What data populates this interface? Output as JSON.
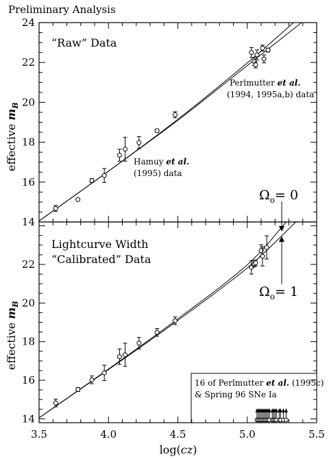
{
  "header": {
    "title": "Preliminary Analysis"
  },
  "chart_data": [
    {
      "type": "scatter",
      "panel_label": "“Raw” Data",
      "xlabel_prefix": "log(",
      "xlabel_var": "cz",
      "xlabel_suffix": ")",
      "ylabel_prefix": "effective",
      "ylabel_var": "m",
      "ylabel_sub": "B",
      "xlim": [
        3.5,
        5.5
      ],
      "ylim": [
        14,
        24
      ],
      "xticks": [
        "3.5",
        "4.0",
        "4.5",
        "5.0",
        "5.5"
      ],
      "yticks": [
        "14",
        "16",
        "18",
        "20",
        "22",
        "24"
      ],
      "annotations": [
        {
          "id": "hamuy",
          "lines": [
            "Hamuy et al.",
            "(1995) data"
          ]
        },
        {
          "id": "perlmutter",
          "lines": [
            "Perlmutter et al.",
            "(1994, 1995a,b) data"
          ]
        }
      ],
      "series": [
        {
          "points": [
            {
              "x": 3.62,
              "y": 14.68,
              "err": 0.15
            },
            {
              "x": 3.78,
              "y": 15.12,
              "err": 0
            },
            {
              "x": 3.88,
              "y": 16.08,
              "err": 0.1
            },
            {
              "x": 3.97,
              "y": 16.33,
              "err": 0.35
            },
            {
              "x": 4.08,
              "y": 17.35,
              "err": 0.3
            },
            {
              "x": 4.12,
              "y": 17.65,
              "err": 0.6
            },
            {
              "x": 4.22,
              "y": 17.98,
              "err": 0.3
            },
            {
              "x": 4.35,
              "y": 18.58,
              "err": 0.08
            },
            {
              "x": 4.48,
              "y": 19.38,
              "err": 0.15
            },
            {
              "x": 5.03,
              "y": 22.5,
              "err": 0.25
            },
            {
              "x": 5.05,
              "y": 22.05,
              "err": 0.2
            },
            {
              "x": 5.06,
              "y": 21.88,
              "err": 0.15
            },
            {
              "x": 5.07,
              "y": 22.38,
              "err": 0.25
            },
            {
              "x": 5.11,
              "y": 22.72,
              "err": 0.15
            },
            {
              "x": 5.12,
              "y": 22.18,
              "err": 0.2
            },
            {
              "x": 5.15,
              "y": 22.62,
              "err": 0.1
            }
          ]
        }
      ],
      "curves": [
        {
          "points": [
            [
              3.5,
              14.05
            ],
            [
              4.0,
              16.55
            ],
            [
              4.5,
              19.15
            ],
            [
              5.0,
              21.98
            ],
            [
              5.35,
              24.1
            ]
          ]
        },
        {
          "points": [
            [
              3.5,
              14.05
            ],
            [
              4.0,
              16.55
            ],
            [
              4.5,
              19.1
            ],
            [
              5.0,
              21.85
            ],
            [
              5.4,
              24.05
            ]
          ]
        }
      ]
    },
    {
      "type": "scatter",
      "panel_label_lines": [
        "Lightcurve Width",
        "“Calibrated” Data"
      ],
      "xlabel_prefix": "log(",
      "xlabel_var": "cz",
      "xlabel_suffix": ")",
      "ylabel_prefix": "effective",
      "ylabel_var": "m",
      "ylabel_sub": "B",
      "xlim": [
        3.5,
        5.5
      ],
      "ylim": [
        13.8,
        24.2
      ],
      "xticks": [
        "3.5",
        "4.0",
        "4.5",
        "5.0",
        "5.5"
      ],
      "yticks": [
        "14",
        "16",
        "18",
        "20",
        "22"
      ],
      "omega_labels": {
        "top": "Ω",
        "top_sub": "o",
        "top_rest": "= 0",
        "bottom": "Ω",
        "bottom_sub": "o",
        "bottom_rest": "= 1"
      },
      "legend_box_lines": [
        "16 of Perlmutter et al. (1995c)",
        "& Spring 96 SNe Ia"
      ],
      "series": [
        {
          "points": [
            {
              "x": 3.62,
              "y": 14.82,
              "err": 0.2
            },
            {
              "x": 3.78,
              "y": 15.52,
              "err": 0.1
            },
            {
              "x": 3.88,
              "y": 16.02,
              "err": 0.2
            },
            {
              "x": 3.97,
              "y": 16.38,
              "err": 0.4
            },
            {
              "x": 4.08,
              "y": 17.22,
              "err": 0.4
            },
            {
              "x": 4.12,
              "y": 17.32,
              "err": 0.6
            },
            {
              "x": 4.22,
              "y": 17.92,
              "err": 0.3
            },
            {
              "x": 4.35,
              "y": 18.48,
              "err": 0.2
            },
            {
              "x": 4.48,
              "y": 19.08,
              "err": 0.2
            },
            {
              "x": 5.03,
              "y": 21.85,
              "err": 0.35
            },
            {
              "x": 5.05,
              "y": 22.02,
              "err": 0.15
            },
            {
              "x": 5.06,
              "y": 22.08,
              "err": 0.15
            },
            {
              "x": 5.1,
              "y": 22.72,
              "err": 0.3
            },
            {
              "x": 5.11,
              "y": 22.42,
              "err": 0.5
            },
            {
              "x": 5.14,
              "y": 22.88,
              "err": 0.6
            }
          ]
        }
      ],
      "curves": [
        {
          "label": "Ωo = 0",
          "points": [
            [
              3.5,
              14.05
            ],
            [
              4.0,
              16.58
            ],
            [
              4.5,
              19.18
            ],
            [
              5.0,
              21.98
            ],
            [
              5.28,
              24.2
            ]
          ]
        },
        {
          "label": "Ωo = 1",
          "points": [
            [
              3.5,
              14.05
            ],
            [
              4.0,
              16.55
            ],
            [
              4.5,
              19.1
            ],
            [
              5.0,
              21.82
            ],
            [
              5.35,
              24.2
            ]
          ]
        }
      ],
      "bottom_arrows_x": [
        5.07,
        5.08,
        5.09,
        5.1,
        5.11,
        5.12,
        5.13,
        5.14,
        5.15,
        5.16,
        5.18,
        5.19,
        5.2,
        5.21,
        5.23,
        5.24,
        5.26,
        5.28
      ]
    }
  ]
}
